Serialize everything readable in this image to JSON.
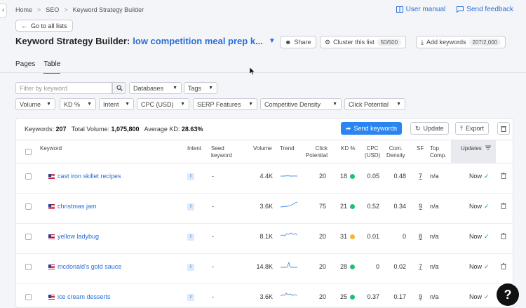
{
  "breadcrumb": [
    "Home",
    "SEO",
    "Keyword Strategy Builder"
  ],
  "links": {
    "user_manual": "User manual",
    "send_feedback": "Send feedback"
  },
  "goto_all": "Go to all lists",
  "title": {
    "prefix": "Keyword Strategy Builder:",
    "list_name": "low competition meal prep k..."
  },
  "toolbar": {
    "share": "Share",
    "cluster": "Cluster this list",
    "cluster_count": "50/500",
    "add_keywords": "Add keywords",
    "add_count": "207/2,000"
  },
  "tabs": [
    "Pages",
    "Table"
  ],
  "active_tab": "Table",
  "filters": {
    "filter_placeholder": "Filter by keyword",
    "row1": [
      "Databases",
      "Tags"
    ],
    "row2": [
      "Volume",
      "KD %",
      "Intent",
      "CPC (USD)",
      "SERP Features",
      "Competitive Density",
      "Click Potential"
    ]
  },
  "summary": {
    "keywords_label": "Keywords:",
    "keywords": "207",
    "volume_label": "Total Volume:",
    "volume": "1,075,800",
    "kd_label": "Average KD:",
    "kd": "28.63%"
  },
  "actions": {
    "send": "Send keywords",
    "update": "Update",
    "export": "Export"
  },
  "columns": {
    "keyword": "Keyword",
    "intent": "Intent",
    "seed1": "Seed",
    "seed2": "keyword",
    "volume": "Volume",
    "trend": "Trend",
    "click1": "Click",
    "click2": "Potential",
    "kd": "KD %",
    "cpc1": "CPC",
    "cpc2": "(USD)",
    "com1": "Com.",
    "com2": "Density",
    "sf": "SF",
    "top1": "Top",
    "top2": "Comp.",
    "updates": "Updates"
  },
  "rows": [
    {
      "keyword": "cast iron skillet recipes",
      "intent": "I",
      "seed": "-",
      "volume": "4.4K",
      "click": "20",
      "kd": "18",
      "kd_color": "#1fbf75",
      "cpc": "0.05",
      "com": "0.48",
      "sf": "7",
      "top": "n/a",
      "status": "Now"
    },
    {
      "keyword": "christmas jam",
      "intent": "I",
      "seed": "-",
      "volume": "3.6K",
      "click": "75",
      "kd": "21",
      "kd_color": "#1fbf75",
      "cpc": "0.52",
      "com": "0.34",
      "sf": "9",
      "top": "n/a",
      "status": "Now"
    },
    {
      "keyword": "yellow ladybug",
      "intent": "I",
      "seed": "-",
      "volume": "8.1K",
      "click": "20",
      "kd": "31",
      "kd_color": "#f5b731",
      "cpc": "0.01",
      "com": "0",
      "sf": "8",
      "top": "n/a",
      "status": "Now"
    },
    {
      "keyword": "mcdonald's gold sauce",
      "intent": "I",
      "seed": "-",
      "volume": "14.8K",
      "click": "20",
      "kd": "28",
      "kd_color": "#1fbf75",
      "cpc": "0",
      "com": "0.02",
      "sf": "7",
      "top": "n/a",
      "status": "Now"
    },
    {
      "keyword": "ice cream desserts",
      "intent": "I",
      "seed": "-",
      "volume": "3.6K",
      "click": "20",
      "kd": "25",
      "kd_color": "#1fbf75",
      "cpc": "0.37",
      "com": "0.17",
      "sf": "9",
      "top": "n/a",
      "status": "Now"
    }
  ],
  "help": "?"
}
